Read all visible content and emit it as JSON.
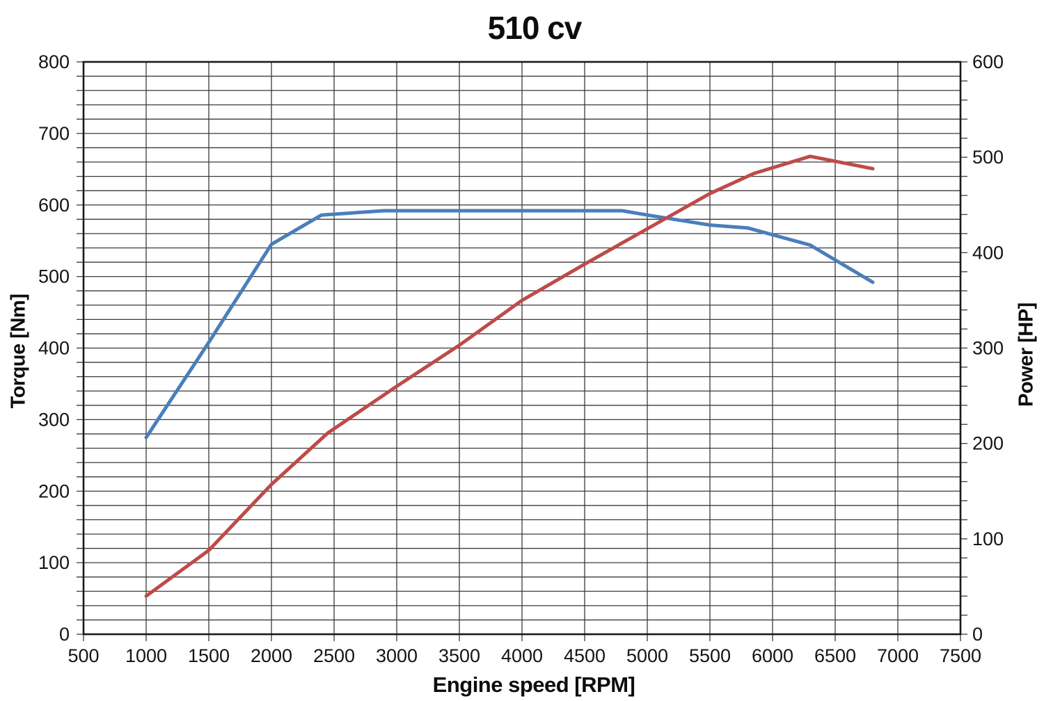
{
  "chart_data": {
    "type": "line",
    "title": "510 cv",
    "xlabel": "Engine speed [RPM]",
    "grid": true,
    "legend": "none",
    "x_axis": {
      "min": 500,
      "max": 7500,
      "tick_step": 500,
      "tick_labels": [
        500,
        1000,
        1500,
        2000,
        2500,
        3000,
        3500,
        4000,
        4500,
        5000,
        5500,
        6000,
        6500,
        7000,
        7500
      ]
    },
    "y_left": {
      "label": "Torque [Nm]",
      "min": 0,
      "max": 800,
      "tick_step": 100,
      "grid_step": 20,
      "tick_labels": [
        0,
        100,
        200,
        300,
        400,
        500,
        600,
        700,
        800
      ]
    },
    "y_right": {
      "label": "Power [HP]",
      "min": 0,
      "max": 600,
      "tick_step": 100,
      "minor_tick_step": 20,
      "tick_labels": [
        0,
        100,
        200,
        300,
        400,
        500,
        600
      ]
    },
    "style": {
      "grid_color": "#3a3a3a",
      "axis_color": "#1a1a1a",
      "text_color": "#141414",
      "torque_color": "#4a7ebb",
      "power_color": "#be4b48"
    },
    "series": [
      {
        "name": "Torque",
        "axis": "left",
        "units": "Nm",
        "color": "#4a7ebb",
        "points": [
          [
            1000,
            275
          ],
          [
            1500,
            408
          ],
          [
            2000,
            545
          ],
          [
            2400,
            586
          ],
          [
            2900,
            592
          ],
          [
            4800,
            592
          ],
          [
            5000,
            586
          ],
          [
            5500,
            572
          ],
          [
            5800,
            568
          ],
          [
            6300,
            544
          ],
          [
            6800,
            492
          ]
        ]
      },
      {
        "name": "Power",
        "axis": "right",
        "units": "HP",
        "color": "#be4b48",
        "points": [
          [
            1000,
            40
          ],
          [
            1500,
            88
          ],
          [
            2000,
            157
          ],
          [
            2450,
            211
          ],
          [
            3000,
            260
          ],
          [
            3500,
            303
          ],
          [
            4000,
            350
          ],
          [
            4500,
            388
          ],
          [
            5000,
            425
          ],
          [
            5500,
            462
          ],
          [
            5850,
            483
          ],
          [
            6300,
            501
          ],
          [
            6800,
            488
          ]
        ]
      }
    ]
  }
}
